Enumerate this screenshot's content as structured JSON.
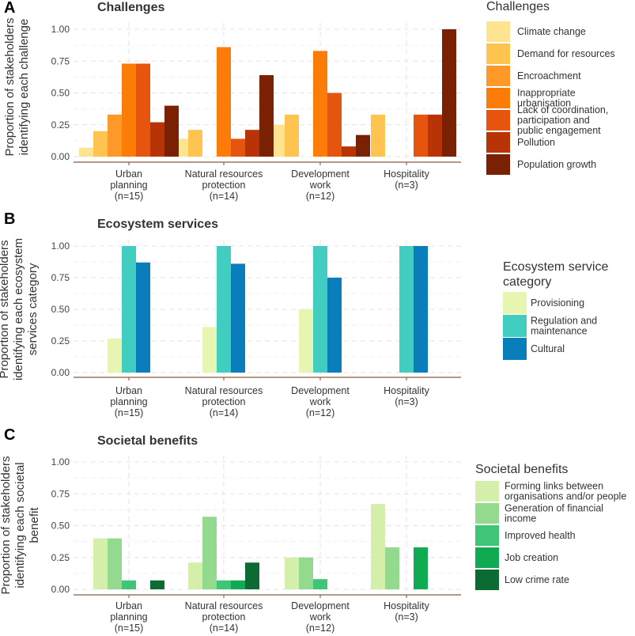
{
  "chart_data": [
    {
      "type": "bar",
      "panel": "A",
      "title": "Challenges",
      "ylabel": "Proportion of stakeholders identifying each challenge",
      "ylabel_lines": [
        "Proportion of stakeholders",
        "identifying each challenge"
      ],
      "ylim": [
        0,
        1.0
      ],
      "yticks": [
        "0.00",
        "0.25",
        "0.50",
        "0.75",
        "1.00"
      ],
      "categories": [
        [
          "Urban",
          "planning",
          "(n=15)"
        ],
        [
          "Natural resources",
          "protection",
          "(n=14)"
        ],
        [
          "Development",
          "work",
          "(n=12)"
        ],
        [
          "Hospitality",
          "(n=3)"
        ]
      ],
      "legend_title": "Challenges",
      "series": [
        {
          "name": "Climate change",
          "label_lines": [
            "Climate change"
          ],
          "color": "#FEE391",
          "values": [
            0.07,
            0.14,
            0.25,
            0
          ]
        },
        {
          "name": "Demand for resources",
          "label_lines": [
            "Demand for resources"
          ],
          "color": "#FEC44F",
          "values": [
            0.2,
            0.21,
            0.33,
            0.33
          ]
        },
        {
          "name": "Encroachment",
          "label_lines": [
            "Encroachment"
          ],
          "color": "#FE9929",
          "values": [
            0.33,
            0,
            0,
            0
          ]
        },
        {
          "name": "Inappropriate urbanisation",
          "label_lines": [
            "Inappropriate",
            "urbanisation"
          ],
          "color": "#FB7D07",
          "values": [
            0.73,
            0.86,
            0.83,
            0
          ]
        },
        {
          "name": "Lack of coordination, participation and public engagement",
          "label_lines": [
            "Lack of coordination,",
            "participation and",
            "public engagement"
          ],
          "color": "#E6550D",
          "values": [
            0.73,
            0.14,
            0.5,
            0.33
          ]
        },
        {
          "name": "Pollution",
          "label_lines": [
            "Pollution"
          ],
          "color": "#B83305",
          "values": [
            0.27,
            0.21,
            0.08,
            0.33
          ]
        },
        {
          "name": "Population growth",
          "label_lines": [
            "Population growth"
          ],
          "color": "#7A2003",
          "values": [
            0.4,
            0.64,
            0.17,
            1.0
          ]
        }
      ]
    },
    {
      "type": "bar",
      "panel": "B",
      "title": "Ecosystem services",
      "ylabel": "Proportion of stakeholders identifying each ecosystem services category",
      "ylabel_lines": [
        "Proportion of stakeholders",
        "identifying each ecosystem",
        "services category"
      ],
      "ylim": [
        0,
        1.0
      ],
      "yticks": [
        "0.00",
        "0.25",
        "0.50",
        "0.75",
        "1.00"
      ],
      "categories": [
        [
          "Urban",
          "planning",
          "(n=15)"
        ],
        [
          "Natural resources",
          "protection",
          "(n=14)"
        ],
        [
          "Development",
          "work",
          "(n=12)"
        ],
        [
          "Hospitality",
          "(n=3)"
        ]
      ],
      "legend_title": "Ecosystem service category",
      "legend_title_lines": [
        "Ecosystem service",
        "category"
      ],
      "series": [
        {
          "name": "Provisioning",
          "label_lines": [
            "Provisioning"
          ],
          "color": "#E6F5B0",
          "values": [
            0.27,
            0.36,
            0.5,
            0
          ]
        },
        {
          "name": "Regulation and maintenance",
          "label_lines": [
            "Regulation and",
            "maintenance"
          ],
          "color": "#41CDC0",
          "values": [
            1.0,
            1.0,
            1.0,
            1.0
          ]
        },
        {
          "name": "Cultural",
          "label_lines": [
            "Cultural"
          ],
          "color": "#0A7EBA",
          "values": [
            0.87,
            0.86,
            0.75,
            1.0
          ]
        }
      ]
    },
    {
      "type": "bar",
      "panel": "C",
      "title": "Societal benefits",
      "ylabel": "Proportion of stakeholders identifying each societal benefit",
      "ylabel_lines": [
        "Proportion of stakeholders",
        "identifying each societal",
        "benefit"
      ],
      "ylim": [
        0,
        1.0
      ],
      "yticks": [
        "0.00",
        "0.25",
        "0.50",
        "0.75",
        "1.00"
      ],
      "categories": [
        [
          "Urban",
          "planning",
          "(n=15)"
        ],
        [
          "Natural resources",
          "protection",
          "(n=14)"
        ],
        [
          "Development",
          "work",
          "(n=12)"
        ],
        [
          "Hospitality",
          "(n=3)"
        ]
      ],
      "legend_title": "Societal benefits",
      "series": [
        {
          "name": "Forming links between organisations and/or people",
          "label_lines": [
            "Forming links between",
            "organisations and/or people"
          ],
          "color": "#D4EFAA",
          "values": [
            0.4,
            0.21,
            0.25,
            0.67
          ]
        },
        {
          "name": "Generation of financial income",
          "label_lines": [
            "Generation of financial",
            "income"
          ],
          "color": "#93DA8E",
          "values": [
            0.4,
            0.57,
            0.25,
            0.33
          ]
        },
        {
          "name": "Improved health",
          "label_lines": [
            "Improved health"
          ],
          "color": "#3EC676",
          "values": [
            0.07,
            0.07,
            0.08,
            0
          ]
        },
        {
          "name": "Job creation",
          "label_lines": [
            "Job creation"
          ],
          "color": "#0FAA52",
          "values": [
            0,
            0.07,
            0,
            0.33
          ]
        },
        {
          "name": "Low crime rate",
          "label_lines": [
            "Low crime rate"
          ],
          "color": "#0B6B32",
          "values": [
            0.07,
            0.21,
            0,
            0
          ]
        }
      ]
    }
  ]
}
